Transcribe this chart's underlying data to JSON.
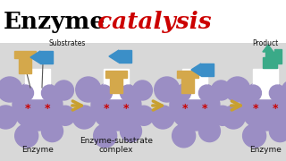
{
  "title_enzyme": "Enzyme",
  "title_catalysis": " catalysis",
  "title_enzyme_color": "#000000",
  "title_catalysis_color": "#cc0000",
  "bg_color": "#ffffff",
  "panel_bg": "#d8d8d8",
  "enzyme_color": "#9b8ec4",
  "substrate1_color": "#d4a84b",
  "substrate2_color": "#3b8fc8",
  "product_color": "#3aaa88",
  "active_site_color": "#cc0000",
  "arrow_color": "#c8a030",
  "label_fontsize": 6.5,
  "substrates_label": "Substrates",
  "product_label": "Product",
  "labels": [
    "Enzyme",
    "Enzyme-substrate\ncomplex",
    "Enzyme"
  ]
}
